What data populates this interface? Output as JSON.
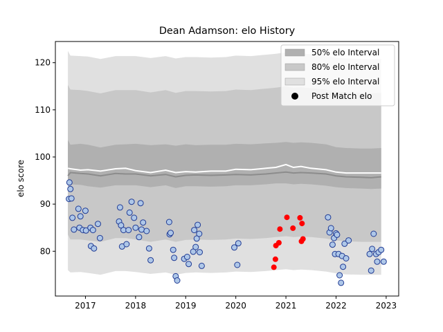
{
  "chart_data": {
    "type": "area",
    "title": "Dean Adamson: elo History",
    "xlabel": "",
    "ylabel": "elo score",
    "xlim": [
      2016.4,
      2023.25
    ],
    "ylim": [
      70.5,
      124.5
    ],
    "xticks": [
      2017,
      2018,
      2019,
      2020,
      2021,
      2022,
      2023
    ],
    "yticks": [
      80,
      90,
      100,
      110,
      120
    ],
    "grid": false,
    "legend_position": "top-right",
    "legend": [
      {
        "label": "50% elo Interval",
        "kind": "patch",
        "color": "#b0b0b0"
      },
      {
        "label": "80% elo Interval",
        "kind": "patch",
        "color": "#c8c8c8"
      },
      {
        "label": "95% elo Interval",
        "kind": "patch",
        "color": "#e0e0e0"
      },
      {
        "label": "Post Match elo",
        "kind": "marker",
        "color": "#000000"
      }
    ],
    "bands": {
      "x": [
        2016.65,
        2016.7,
        2016.9,
        2017.05,
        2017.3,
        2017.6,
        2017.8,
        2018.0,
        2018.3,
        2018.6,
        2018.8,
        2019.0,
        2019.2,
        2019.5,
        2019.8,
        2020.0,
        2020.3,
        2020.6,
        2020.8,
        2021.0,
        2021.15,
        2021.3,
        2021.5,
        2021.8,
        2022.0,
        2022.2,
        2022.5,
        2022.7,
        2022.9
      ],
      "median": [
        96.0,
        96.7,
        96.5,
        96.4,
        96.0,
        96.5,
        96.4,
        96.4,
        96.0,
        96.3,
        95.8,
        96.1,
        96.2,
        96.1,
        96.2,
        96.3,
        96.2,
        96.4,
        96.6,
        96.8,
        96.6,
        96.7,
        96.6,
        96.4,
        96.0,
        95.8,
        95.7,
        95.6,
        95.8
      ],
      "upper_line": [
        97.6,
        97.5,
        97.2,
        97.3,
        97.0,
        97.5,
        97.6,
        97.1,
        96.7,
        97.2,
        96.7,
        96.9,
        96.8,
        97.0,
        97.0,
        97.4,
        97.3,
        97.6,
        97.8,
        98.4,
        97.8,
        98.0,
        97.6,
        97.3,
        96.8,
        96.6,
        96.6,
        96.6,
        96.6
      ],
      "q50_low": [
        94.0,
        94.2,
        94.1,
        93.8,
        93.5,
        94.0,
        94.0,
        94.0,
        93.6,
        94.0,
        93.4,
        93.8,
        93.8,
        93.7,
        93.8,
        94.0,
        94.0,
        94.2,
        94.4,
        94.4,
        94.2,
        94.3,
        94.2,
        93.9,
        93.6,
        93.4,
        93.3,
        93.2,
        93.3
      ],
      "q50_high": [
        103.6,
        102.6,
        102.8,
        102.6,
        102.0,
        102.6,
        102.7,
        102.8,
        102.5,
        102.7,
        102.4,
        102.7,
        102.5,
        102.6,
        102.6,
        102.8,
        102.7,
        102.9,
        103.0,
        103.2,
        103.0,
        103.1,
        103.0,
        102.7,
        102.1,
        101.9,
        101.8,
        101.8,
        101.9
      ],
      "q80_low": [
        83.5,
        82.5,
        82.5,
        82.3,
        82.0,
        82.8,
        82.8,
        82.5,
        82.0,
        82.5,
        82.0,
        82.4,
        82.5,
        82.4,
        82.5,
        82.7,
        82.6,
        82.8,
        83.0,
        83.2,
        83.0,
        83.1,
        83.0,
        82.7,
        82.3,
        82.1,
        82.0,
        82.0,
        82.0
      ],
      "q80_high": [
        115.3,
        114.3,
        114.2,
        114.0,
        113.5,
        114.2,
        114.2,
        114.2,
        113.7,
        114.2,
        113.6,
        114.0,
        114.0,
        113.9,
        114.0,
        114.3,
        114.2,
        114.5,
        114.7,
        115.0,
        114.7,
        114.8,
        114.6,
        114.3,
        113.9,
        113.7,
        113.6,
        113.5,
        113.6
      ],
      "q95_low": [
        76.0,
        75.5,
        75.6,
        75.4,
        75.0,
        75.8,
        75.8,
        75.6,
        75.2,
        75.5,
        75.0,
        75.4,
        75.5,
        75.4,
        75.5,
        75.7,
        75.6,
        75.8,
        76.0,
        76.2,
        76.0,
        76.1,
        76.0,
        75.7,
        75.3,
        75.1,
        75.0,
        75.0,
        75.0
      ],
      "q95_high": [
        122.5,
        121.5,
        121.4,
        121.3,
        120.8,
        121.4,
        121.4,
        121.4,
        121.0,
        121.4,
        120.9,
        121.2,
        121.2,
        121.1,
        121.2,
        121.5,
        121.4,
        121.7,
        121.9,
        122.2,
        121.9,
        122.0,
        121.8,
        121.5,
        121.1,
        120.9,
        120.8,
        120.7,
        120.8
      ]
    },
    "series": [
      {
        "name": "Post Match elo",
        "kind": "scatter",
        "x": [
          2016.67,
          2016.68,
          2016.7,
          2016.72,
          2016.74,
          2016.77,
          2016.86,
          2016.88,
          2016.9,
          2016.95,
          2017.0,
          2017.01,
          2017.1,
          2017.11,
          2017.15,
          2017.17,
          2017.25,
          2017.29,
          2017.67,
          2017.69,
          2017.71,
          2017.73,
          2017.76,
          2017.82,
          2017.86,
          2017.88,
          2017.92,
          2017.97,
          2018.0,
          2018.07,
          2018.1,
          2018.12,
          2018.15,
          2018.22,
          2018.27,
          2018.3,
          2018.67,
          2018.68,
          2018.7,
          2018.75,
          2018.77,
          2018.8,
          2018.83,
          2018.97,
          2019.03,
          2019.06,
          2019.15,
          2019.17,
          2019.2,
          2019.22,
          2019.24,
          2019.27,
          2019.28,
          2019.32,
          2019.97,
          2020.03,
          2020.05
        ],
        "y": [
          91.1,
          94.6,
          93.2,
          91.2,
          87.1,
          84.6,
          89.0,
          85.0,
          87.4,
          84.5,
          88.6,
          84.4,
          85.0,
          81.1,
          84.5,
          80.6,
          85.8,
          82.8,
          86.3,
          89.3,
          85.5,
          81.0,
          84.5,
          81.5,
          84.5,
          88.2,
          90.5,
          87.1,
          85.0,
          83.0,
          90.2,
          84.6,
          86.1,
          84.3,
          80.6,
          78.1,
          86.2,
          83.6,
          83.9,
          80.3,
          78.6,
          74.7,
          73.8,
          78.4,
          78.8,
          77.3,
          79.9,
          84.5,
          80.9,
          82.7,
          85.6,
          83.7,
          79.8,
          76.9,
          80.8,
          77.1,
          81.7
        ]
      }
    ],
    "highlight_series": {
      "name": "Post Match elo",
      "kind": "scatter",
      "x": [
        2020.76,
        2020.79,
        2020.8,
        2020.86,
        2020.88,
        2021.02,
        2021.14,
        2021.28,
        2021.31,
        2021.32,
        2021.34
      ],
      "y": [
        76.6,
        78.3,
        81.2,
        81.8,
        84.7,
        87.2,
        84.9,
        87.1,
        82.1,
        85.9,
        82.6
      ]
    },
    "series_late": {
      "name": "Post Match elo",
      "kind": "scatter",
      "x": [
        2021.84,
        2021.87,
        2021.9,
        2021.93,
        2021.96,
        2021.98,
        2022.0,
        2022.02,
        2022.05,
        2022.07,
        2022.1,
        2022.12,
        2022.14,
        2022.17,
        2022.2,
        2022.25,
        2022.67,
        2022.7,
        2022.72,
        2022.75,
        2022.8,
        2022.82,
        2022.85,
        2022.9,
        2022.95
      ],
      "y": [
        87.2,
        84.0,
        84.9,
        81.4,
        82.8,
        79.4,
        83.8,
        83.5,
        79.4,
        74.9,
        73.3,
        79.0,
        76.7,
        81.6,
        78.5,
        82.3,
        79.4,
        75.9,
        80.5,
        83.7,
        79.4,
        77.8,
        79.8,
        80.3,
        77.8
      ]
    },
    "colors": {
      "q95": "#e0e0e0",
      "q80": "#c8c8c8",
      "q50": "#b0b0b0",
      "median_line": "#8c8c8c",
      "upper_line": "#ffffff",
      "point_face": "#aec7e8",
      "point_edge": "#1f3a93",
      "highlight": "#ff0000"
    }
  }
}
